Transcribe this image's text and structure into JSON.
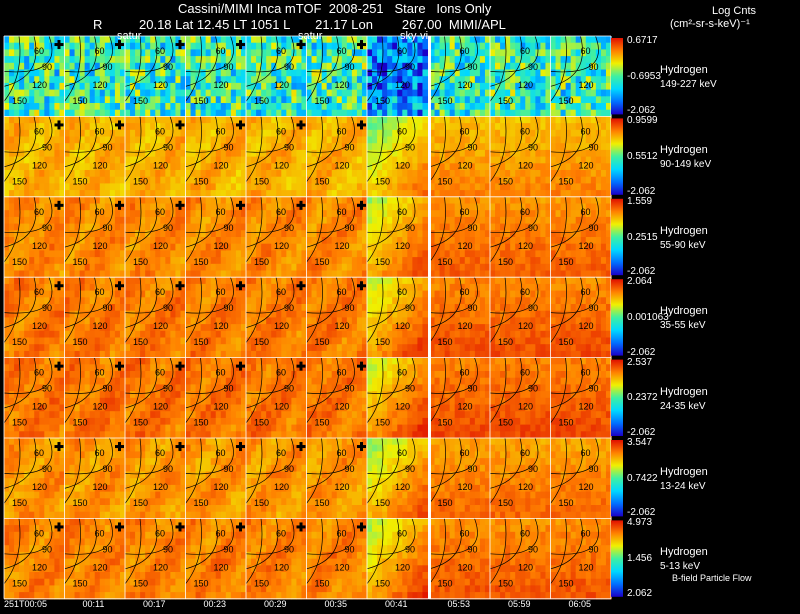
{
  "header": {
    "line1": "Cassini/MIMI Inca mTOF  2008-251   Stare   Ions Only",
    "line2_r": "R",
    "line2": "20.18 Lat 12.45 LT 1051 L       21.17 Lon        267.00  MIMI/APL",
    "units_title": "Log Cnts",
    "units_sub": "(cm²-sr-s-keV)⁻¹"
  },
  "overlay_labels": [
    "satur",
    "satur",
    "sky-vi"
  ],
  "contour_labels": [
    "60",
    "90",
    "120",
    "150"
  ],
  "footer": {
    "flow": "B-field Particle Flow"
  },
  "chart_data": {
    "type": "heatmap",
    "title": "Cassini/MIMI Inca mTOF  2008-251   Stare   Ions Only",
    "times": [
      "251T00:05",
      "00:11",
      "00:17",
      "00:23",
      "00:29",
      "00:35",
      "00:41",
      "05:53",
      "05:59",
      "06:05"
    ],
    "rows": [
      {
        "species": "Hydrogen",
        "energy": "149-227 keV",
        "max": "0.6717",
        "mid": "-0.6953",
        "min": "-2.062"
      },
      {
        "species": "Hydrogen",
        "energy": "90-149 keV",
        "max": "0.9599",
        "mid": "0.5512",
        "min": "-2.062"
      },
      {
        "species": "Hydrogen",
        "energy": "55-90 keV",
        "max": "1.559",
        "mid": "0.2515",
        "min": "-2.062"
      },
      {
        "species": "Hydrogen",
        "energy": "35-55 keV",
        "max": "2.064",
        "mid": "0.001063",
        "min": "-2.062"
      },
      {
        "species": "Hydrogen",
        "energy": "24-35 keV",
        "max": "2.537",
        "mid": "0.2372",
        "min": "-2.062"
      },
      {
        "species": "Hydrogen",
        "energy": "13-24 keV",
        "max": "3.547",
        "mid": "0.7422",
        "min": "-2.062"
      },
      {
        "species": "Hydrogen",
        "energy": "5-13 keV",
        "max": "4.973",
        "mid": "1.456",
        "min": "2.062"
      }
    ],
    "colorscale": [
      "#1a00c8",
      "#0070ff",
      "#00d8ff",
      "#40f0a0",
      "#f0f000",
      "#ff8000",
      "#e01000"
    ],
    "level_by_row": [
      0.45,
      0.82,
      0.88,
      0.9,
      0.91,
      0.86,
      0.89
    ],
    "frame_groups": [
      7,
      3
    ]
  }
}
